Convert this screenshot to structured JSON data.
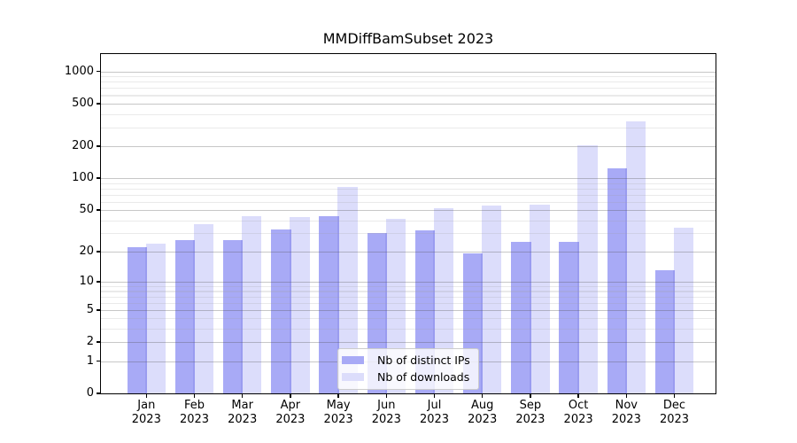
{
  "title": "MMDiffBamSubset 2023",
  "chart_data": {
    "type": "bar",
    "title": "MMDiffBamSubset 2023",
    "categories": [
      "Jan",
      "Feb",
      "Mar",
      "Apr",
      "May",
      "Jun",
      "Jul",
      "Aug",
      "Sep",
      "Oct",
      "Nov",
      "Dec"
    ],
    "year_label": "2023",
    "series": [
      {
        "name": "Nb of distinct IPs",
        "color": "#a8aaf6",
        "values": [
          22,
          26,
          26,
          33,
          44,
          30,
          32,
          19,
          25,
          25,
          124,
          13
        ]
      },
      {
        "name": "Nb of downloads",
        "color": "#dcddfb",
        "values": [
          24,
          37,
          44,
          43,
          83,
          41,
          52,
          55,
          56,
          203,
          342,
          34
        ]
      }
    ],
    "xlabel": "",
    "ylabel": "",
    "y_scale": "symlog",
    "y_ticks": [
      0,
      1,
      2,
      5,
      10,
      20,
      50,
      100,
      200,
      500,
      1000
    ],
    "y_minor_ticks": [
      3,
      4,
      6,
      7,
      8,
      9,
      30,
      40,
      60,
      70,
      80,
      90,
      300,
      400,
      600,
      700,
      800,
      900
    ],
    "ylim": [
      0,
      1420
    ],
    "grid": true,
    "legend_position": "lower center"
  }
}
